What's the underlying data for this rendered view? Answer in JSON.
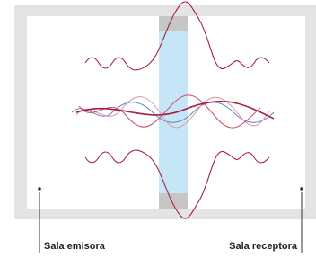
{
  "labels": {
    "left": "Sala emisora",
    "right": "Sala receptora"
  }
}
